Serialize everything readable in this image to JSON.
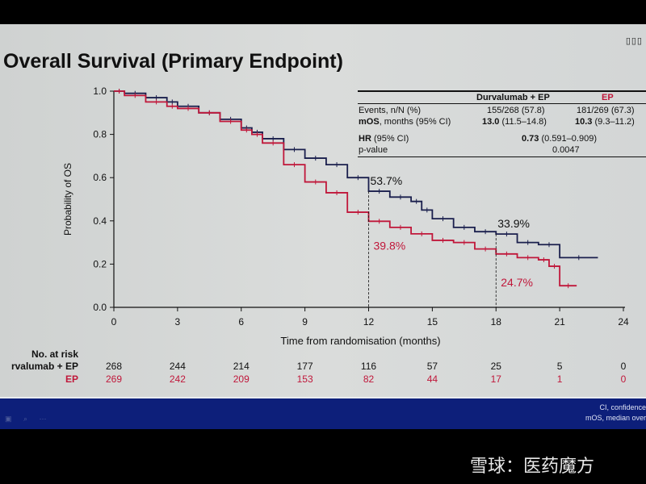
{
  "slide": {
    "title": "Overall Survival (Primary Endpoint)",
    "corner_mark": "▯▯▯",
    "footnote": "CI, confidence\nmOS, median over",
    "footer_icons": "▣ ⌕ ⋯",
    "watermark": "雪球：医药魔方"
  },
  "stats_table": {
    "columns": [
      "",
      "Durvalumab + EP",
      "EP"
    ],
    "rows": [
      {
        "label": "Events, n/N (%)",
        "durva": "155/268 (57.8)",
        "ep": "181/269 (67.3)"
      },
      {
        "label_bold": "mOS",
        "label": ", months (95% CI)",
        "durva_bold": "13.0",
        "durva": " (11.5–14.8)",
        "ep_bold": "10.3",
        "ep": " (9.3–11.2)"
      },
      {
        "label_bold": "HR",
        "label": " (95% CI)",
        "value_bold": "0.73",
        "value": " (0.591–0.909)"
      },
      {
        "label": "p-value",
        "value": "0.0047"
      }
    ]
  },
  "risk_table": {
    "header": "No. at risk",
    "rows": [
      {
        "label": "rvalumab + EP",
        "values": [
          "268",
          "244",
          "214",
          "177",
          "116",
          "57",
          "25",
          "5",
          "0"
        ]
      },
      {
        "label": "EP",
        "values": [
          "269",
          "242",
          "209",
          "153",
          "82",
          "44",
          "17",
          "1",
          "0"
        ]
      }
    ]
  },
  "chart_data": {
    "type": "line",
    "step": true,
    "xlabel": "Time from randomisation (months)",
    "ylabel": "Probability of OS",
    "xlim": [
      0,
      24
    ],
    "ylim": [
      0,
      1.0
    ],
    "xticks": [
      "0",
      "3",
      "6",
      "9",
      "12",
      "15",
      "18",
      "21",
      "24"
    ],
    "yticks": [
      "0.0",
      "0.2",
      "0.4",
      "0.6",
      "0.8",
      "1.0"
    ],
    "grid": false,
    "colors": {
      "durvalumab": "#1a1f4d",
      "ep": "#c0173a"
    },
    "series": [
      {
        "name": "Durvalumab + EP",
        "color": "#1a1f4d",
        "x": [
          0,
          0.5,
          1.5,
          2.5,
          3,
          4,
          5,
          6,
          6.5,
          7,
          8,
          9,
          10,
          11,
          12,
          13,
          14,
          14.5,
          15,
          16,
          17,
          18,
          19,
          20,
          21,
          22.8
        ],
        "y": [
          1.0,
          0.99,
          0.97,
          0.95,
          0.93,
          0.9,
          0.87,
          0.83,
          0.81,
          0.78,
          0.73,
          0.69,
          0.66,
          0.6,
          0.537,
          0.51,
          0.49,
          0.45,
          0.41,
          0.37,
          0.35,
          0.339,
          0.3,
          0.29,
          0.23,
          0.23
        ]
      },
      {
        "name": "EP",
        "color": "#c0173a",
        "x": [
          0,
          0.5,
          1.5,
          2.5,
          3,
          4,
          5,
          6,
          6.5,
          7,
          8,
          9,
          10,
          11,
          12,
          13,
          14,
          15,
          16,
          17,
          18,
          19,
          20,
          20.5,
          21,
          21.8
        ],
        "y": [
          1.0,
          0.98,
          0.95,
          0.93,
          0.92,
          0.9,
          0.86,
          0.82,
          0.8,
          0.76,
          0.66,
          0.58,
          0.53,
          0.44,
          0.398,
          0.37,
          0.34,
          0.31,
          0.3,
          0.27,
          0.247,
          0.23,
          0.22,
          0.19,
          0.1,
          0.1
        ]
      }
    ],
    "annotations": [
      {
        "text": "53.7%",
        "x": 12,
        "y": 0.537,
        "series": "Durvalumab + EP"
      },
      {
        "text": "39.8%",
        "x": 12,
        "y": 0.398,
        "series": "EP"
      },
      {
        "text": "33.9%",
        "x": 18,
        "y": 0.339,
        "series": "Durvalumab + EP"
      },
      {
        "text": "24.7%",
        "x": 18,
        "y": 0.247,
        "series": "EP"
      }
    ]
  }
}
